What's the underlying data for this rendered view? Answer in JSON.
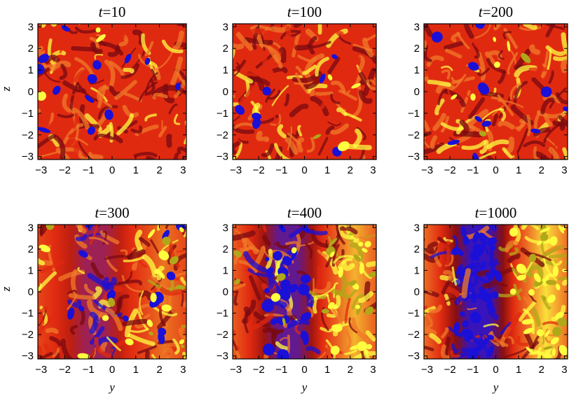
{
  "figure": {
    "panels": [
      {
        "t_label": "t",
        "t_value": "=10",
        "blue_fraction": 0.12,
        "yellow_fraction": 0.03,
        "structure": "small-scale",
        "band": "none"
      },
      {
        "t_label": "t",
        "t_value": "=100",
        "blue_fraction": 0.06,
        "yellow_fraction": 0.04,
        "structure": "small-scale",
        "band": "none"
      },
      {
        "t_label": "t",
        "t_value": "=200",
        "blue_fraction": 0.1,
        "yellow_fraction": 0.07,
        "structure": "small-scale",
        "band": "none"
      },
      {
        "t_label": "t",
        "t_value": "=300",
        "blue_fraction": 0.12,
        "yellow_fraction": 0.2,
        "structure": "emerging band",
        "band": "weak"
      },
      {
        "t_label": "t",
        "t_value": "=400",
        "blue_fraction": 0.22,
        "yellow_fraction": 0.3,
        "structure": "vertical band",
        "band": "medium"
      },
      {
        "t_label": "t",
        "t_value": "=1000",
        "blue_fraction": 0.28,
        "yellow_fraction": 0.35,
        "structure": "vertical band",
        "band": "strong"
      }
    ],
    "x_ticks": [
      "−3",
      "−2",
      "−1",
      "0",
      "1",
      "2",
      "3"
    ],
    "y_ticks": [
      "3",
      "2",
      "1",
      "0",
      "−1",
      "−2",
      "−3"
    ],
    "x_label": "y",
    "y_label": "z",
    "axis_range": [
      -3.14,
      3.14
    ],
    "colors": {
      "low": "#1a10d8",
      "mid_dark": "#7a0a10",
      "mid": "#e02a10",
      "mid_light": "#f07a28",
      "high": "#ffff40",
      "olive": "#b0a818"
    }
  }
}
